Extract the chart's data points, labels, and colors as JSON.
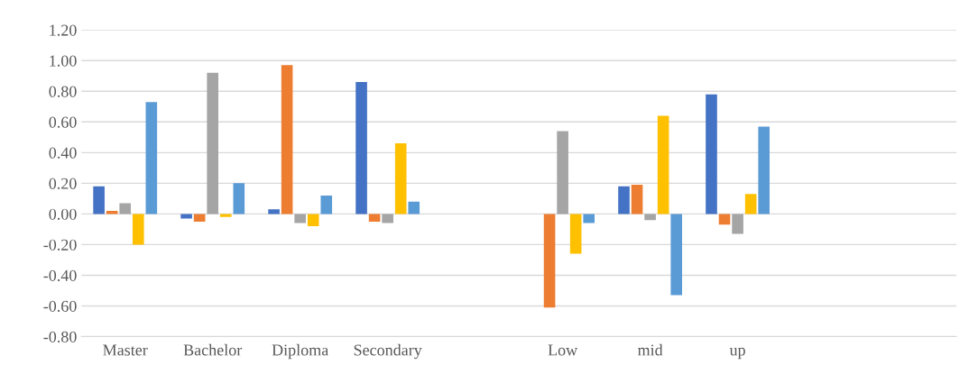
{
  "chart_data": {
    "type": "bar",
    "categories": [
      "Master",
      "Bachelor",
      "Diploma",
      "Secondary",
      null,
      "Low",
      "mid",
      "up",
      null,
      null
    ],
    "series": [
      {
        "color": "#4472c4",
        "values": [
          0.18,
          -0.03,
          0.03,
          0.86,
          null,
          null,
          0.18,
          0.78,
          null,
          null
        ]
      },
      {
        "color": "#ed7d31",
        "values": [
          0.02,
          -0.05,
          0.97,
          -0.05,
          null,
          -0.61,
          0.19,
          -0.07,
          null,
          null
        ]
      },
      {
        "color": "#a5a5a5",
        "values": [
          0.07,
          0.92,
          -0.06,
          -0.06,
          null,
          0.54,
          -0.04,
          -0.13,
          null,
          null
        ]
      },
      {
        "color": "#ffc000",
        "values": [
          -0.2,
          -0.02,
          -0.08,
          0.46,
          null,
          -0.26,
          0.64,
          0.13,
          null,
          null
        ]
      },
      {
        "color": "#5b9bd5",
        "values": [
          0.73,
          0.2,
          0.12,
          0.08,
          null,
          -0.06,
          -0.53,
          0.57,
          null,
          null
        ]
      }
    ],
    "ylim": [
      -0.8,
      1.2
    ],
    "yticks": [
      {
        "value": -0.8,
        "label": "-0.80"
      },
      {
        "value": -0.6,
        "label": "-0.60"
      },
      {
        "value": -0.4,
        "label": "-0.40"
      },
      {
        "value": -0.2,
        "label": "-0.20"
      },
      {
        "value": 0,
        "label": "0.00"
      },
      {
        "value": 0.2,
        "label": "0.20"
      },
      {
        "value": 0.4,
        "label": "0.40"
      },
      {
        "value": 0.6,
        "label": "0.60"
      },
      {
        "value": 0.8,
        "label": "0.80"
      },
      {
        "value": 1.0,
        "label": "1.00"
      },
      {
        "value": 1.2,
        "label": "1.20"
      }
    ],
    "grid": "y",
    "legend": false
  }
}
